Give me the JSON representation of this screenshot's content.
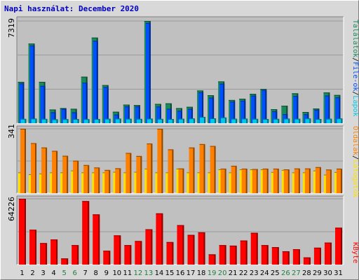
{
  "title": "Napi használat: December 2020",
  "right_labels": {
    "talalatok": "Találatok",
    "sep1": "/",
    "file_ok": "File-ok",
    "sep2": "/",
    "lapok": "Lapok",
    "oldalak": "Oldalak",
    "sep3": "/",
    "latogatok": "Látogatók",
    "kbyte": "KByte"
  },
  "colors": {
    "talalatok": "#1a8a5a",
    "file_ok": "#0050ff",
    "lapok": "#00c8e8",
    "oldalak": "#ff8000",
    "latogatok": "#ffe000",
    "kbyte": "#ff0000",
    "panel_bg": "#c0c0c0",
    "weekday_label": "#000000",
    "weekend_label": "#208040"
  },
  "chart_data": [
    {
      "type": "bar",
      "panel": "top",
      "y_max_label": "7319",
      "ylim": [
        0,
        7319
      ],
      "categories": [
        "1",
        "2",
        "3",
        "4",
        "5",
        "6",
        "7",
        "8",
        "9",
        "10",
        "11",
        "12",
        "13",
        "14",
        "15",
        "16",
        "17",
        "18",
        "19",
        "20",
        "21",
        "22",
        "23",
        "24",
        "25",
        "26",
        "27",
        "28",
        "29",
        "30",
        "31"
      ],
      "weekend_days": [
        "5",
        "6",
        "12",
        "13",
        "19",
        "20",
        "26",
        "27"
      ],
      "series": [
        {
          "name": "Találatok",
          "values": [
            2960,
            5700,
            2960,
            980,
            1080,
            1030,
            3330,
            6130,
            2730,
            820,
            1330,
            1300,
            7319,
            1380,
            1420,
            1080,
            1170,
            2340,
            2000,
            2990,
            1660,
            1750,
            2100,
            2450,
            1000,
            1250,
            2140,
            800,
            1050,
            2200,
            2020
          ]
        },
        {
          "name": "File-ok",
          "values": [
            2850,
            5560,
            2670,
            780,
            1030,
            780,
            2900,
            5900,
            2590,
            620,
            1200,
            1200,
            7180,
            1190,
            1030,
            890,
            1030,
            2210,
            1830,
            2830,
            1550,
            1610,
            1970,
            2370,
            850,
            650,
            1950,
            640,
            960,
            1980,
            1850
          ]
        },
        {
          "name": "Lapok",
          "values": [
            310,
            330,
            310,
            280,
            290,
            300,
            290,
            300,
            320,
            330,
            320,
            310,
            330,
            310,
            300,
            320,
            340,
            450,
            350,
            410,
            320,
            330,
            310,
            300,
            310,
            330,
            320,
            340,
            300,
            320,
            340
          ]
        }
      ]
    },
    {
      "type": "bar",
      "panel": "middle",
      "y_max_label": "341",
      "ylim": [
        0,
        341
      ],
      "categories": [
        "1",
        "2",
        "3",
        "4",
        "5",
        "6",
        "7",
        "8",
        "9",
        "10",
        "11",
        "12",
        "13",
        "14",
        "15",
        "16",
        "17",
        "18",
        "19",
        "20",
        "21",
        "22",
        "23",
        "24",
        "25",
        "26",
        "27",
        "28",
        "29",
        "30",
        "31"
      ],
      "series": [
        {
          "name": "Oldalak",
          "values": [
            341,
            265,
            242,
            224,
            198,
            172,
            149,
            136,
            123,
            132,
            213,
            197,
            263,
            341,
            232,
            131,
            242,
            260,
            250,
            130,
            145,
            130,
            128,
            130,
            130,
            126,
            131,
            131,
            138,
            125,
            130
          ]
        },
        {
          "name": "Látogatók",
          "values": [
            110,
            100,
            104,
            110,
            110,
            120,
            110,
            110,
            110,
            113,
            110,
            113,
            130,
            110,
            110,
            130,
            110,
            110,
            110,
            126,
            110,
            126,
            126,
            126,
            112,
            123,
            110,
            110,
            120,
            98,
            112
          ]
        }
      ]
    },
    {
      "type": "bar",
      "panel": "bottom",
      "y_max_label": "64226",
      "ylim": [
        0,
        64226
      ],
      "categories": [
        "1",
        "2",
        "3",
        "4",
        "5",
        "6",
        "7",
        "8",
        "9",
        "10",
        "11",
        "12",
        "13",
        "14",
        "15",
        "16",
        "17",
        "18",
        "19",
        "20",
        "21",
        "22",
        "23",
        "24",
        "25",
        "26",
        "27",
        "28",
        "29",
        "30",
        "31"
      ],
      "series": [
        {
          "name": "KByte",
          "values": [
            64226,
            34000,
            21000,
            24500,
            6000,
            19000,
            62000,
            49000,
            13500,
            28500,
            19000,
            23000,
            34500,
            50000,
            22000,
            38500,
            29000,
            31500,
            10000,
            19000,
            18500,
            23500,
            31000,
            19000,
            17000,
            13000,
            15000,
            7000,
            16500,
            21500,
            36000
          ]
        }
      ]
    }
  ]
}
